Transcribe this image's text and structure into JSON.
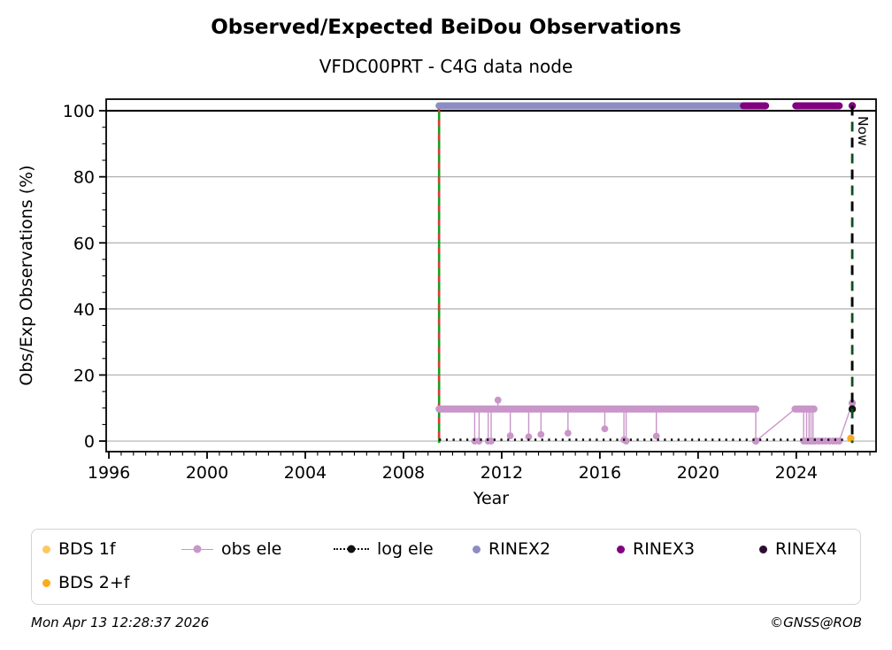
{
  "header": {
    "title": "Observed/Expected BeiDou Observations",
    "subtitle": "VFDC00PRT - C4G data node"
  },
  "footer": {
    "timestamp": "Mon Apr 13 12:28:37 2026",
    "copyright": "©GNSS@ROB"
  },
  "colors": {
    "bds_1f": "#fcc863",
    "bds_2f": "#fbab1c",
    "obs_ele": "#c996c9",
    "log_ele": "#111111",
    "rinex2": "#8d8dc3",
    "rinex3": "#800080",
    "rinex4": "#2d0e33",
    "grid": "#b0b0b0",
    "start_line_green": "#1c9c1c",
    "start_line_red": "#d43c3c",
    "now_line_green": "#0d4f1c",
    "now_line_black": "#000000"
  },
  "chart_data": {
    "type": "line",
    "title": "Observed/Expected BeiDou Observations",
    "subtitle": "VFDC00PRT - C4G data node",
    "xlabel": "Year",
    "ylabel": "Obs/Exp Observations (%)",
    "xlim": [
      1995.89,
      2027.25
    ],
    "ylim": [
      -3.2,
      103.5
    ],
    "xticks": [
      1996,
      2000,
      2004,
      2008,
      2012,
      2016,
      2020,
      2024
    ],
    "yticks": [
      0,
      20,
      40,
      60,
      80,
      100
    ],
    "x_minor_step": 0.5,
    "y_minor_step": 5,
    "grid": "horizontal",
    "legend_position": "bottom",
    "hlines": [
      {
        "y": 100,
        "color": "#000000",
        "width": 2.2
      }
    ],
    "vlines": [
      {
        "x": 2009.45,
        "label": "",
        "style": "green-solid-red-dash"
      },
      {
        "x": 2026.28,
        "label": "Now",
        "style": "black-green-dash"
      }
    ],
    "series": [
      {
        "name": "RINEX2",
        "color": "#8d8dc3",
        "level": 101.5,
        "thick_segments": [
          {
            "y": 101.5,
            "x1": 2009.45,
            "x2": 2021.85
          }
        ],
        "markers": []
      },
      {
        "name": "RINEX3",
        "color": "#800080",
        "level": 101.5,
        "thick_segments": [
          {
            "y": 101.5,
            "x1": 2021.85,
            "x2": 2022.75
          },
          {
            "y": 101.5,
            "x1": 2023.98,
            "x2": 2025.75
          }
        ],
        "markers": [
          [
            2026.28,
            101.5
          ]
        ]
      },
      {
        "name": "RINEX4",
        "color": "#2d0e33",
        "level": 101.5,
        "thick_segments": [],
        "markers": []
      },
      {
        "name": "obs ele",
        "color": "#c996c9",
        "level": 9.7,
        "thick_segments": [
          {
            "y": 9.7,
            "x1": 2009.45,
            "x2": 2022.35
          },
          {
            "y": 9.7,
            "x1": 2023.95,
            "x2": 2024.72
          }
        ],
        "spikes": [
          [
            2010.9,
            0
          ],
          [
            2011.08,
            0
          ],
          [
            2011.45,
            0
          ],
          [
            2011.57,
            0
          ],
          [
            2011.85,
            12.4
          ],
          [
            2012.35,
            1.6
          ],
          [
            2013.1,
            1.3
          ],
          [
            2013.6,
            2.0
          ],
          [
            2014.7,
            2.4
          ],
          [
            2016.2,
            3.7
          ],
          [
            2016.98,
            0.4
          ],
          [
            2017.07,
            0
          ],
          [
            2018.3,
            1.5
          ],
          [
            2024.3,
            0
          ],
          [
            2024.42,
            0
          ],
          [
            2024.52,
            0
          ],
          [
            2024.6,
            0
          ],
          [
            2024.68,
            0
          ]
        ],
        "lines": [
          [
            2022.35,
            9.7,
            2022.35,
            0
          ],
          [
            2022.35,
            0,
            2023.95,
            9.7
          ],
          [
            2025.75,
            0,
            2026.28,
            11.5
          ]
        ],
        "zero_markers_x": [
          2024.78,
          2024.92,
          2025.06,
          2025.2,
          2025.35,
          2025.5,
          2025.62,
          2025.75
        ],
        "markers": [
          [
            2022.35,
            0
          ],
          [
            2026.28,
            11.5
          ]
        ]
      },
      {
        "name": "log ele",
        "color": "#111111",
        "level": 0.4,
        "dotted_segments": [
          {
            "y": 0.4,
            "x1": 2009.45,
            "x2": 2025.95
          }
        ],
        "markers": [
          [
            2026.28,
            9.7
          ]
        ]
      },
      {
        "name": "BDS 2+f",
        "color": "#fbab1c",
        "level": 0.8,
        "markers": [
          [
            2026.22,
            0.8
          ]
        ]
      }
    ]
  },
  "legend": {
    "rows": [
      [
        {
          "label": "BDS 1f",
          "color": "#fcc863",
          "type": "dot"
        },
        {
          "label": "obs ele",
          "color": "#c996c9",
          "type": "dot-line"
        },
        {
          "label": "log ele",
          "color": "#111111",
          "type": "dot-dotted"
        },
        {
          "label": "RINEX2",
          "color": "#8d8dc3",
          "type": "dot"
        },
        {
          "label": "RINEX3",
          "color": "#800080",
          "type": "dot"
        },
        {
          "label": "RINEX4",
          "color": "#2d0e33",
          "type": "dot"
        }
      ],
      [
        {
          "label": "BDS 2+f",
          "color": "#fbab1c",
          "type": "dot"
        }
      ]
    ]
  }
}
